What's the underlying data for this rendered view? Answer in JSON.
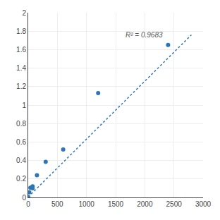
{
  "chart_data": {
    "type": "scatter",
    "series": [
      {
        "type": "line",
        "x": [
          0,
          2800
        ],
        "values": [
          0.005,
          1.76
        ],
        "color": "#2e75b6",
        "line_style": "dotted"
      },
      {
        "type": "scatter",
        "x": [
          0,
          18.75,
          37.5,
          75,
          75,
          150,
          300,
          600,
          1200,
          2400
        ],
        "values": [
          0.003,
          0.055,
          0.105,
          0.1,
          0.12,
          0.24,
          0.385,
          0.52,
          1.13,
          1.65
        ],
        "color": "#2e75b6",
        "marker": "circle"
      }
    ],
    "annotations": [
      {
        "text": "R² = 0.9683",
        "x": 1650,
        "y": 1.7,
        "color": "#595959"
      }
    ],
    "xlim": [
      0,
      3000
    ],
    "ylim": [
      0,
      2
    ],
    "xticks": [
      0,
      500,
      1000,
      1500,
      2000,
      2500,
      3000
    ],
    "yticks": [
      0,
      0.2,
      0.4,
      0.6,
      0.8,
      1,
      1.2,
      1.4,
      1.6,
      1.8,
      2
    ],
    "grid": true
  }
}
